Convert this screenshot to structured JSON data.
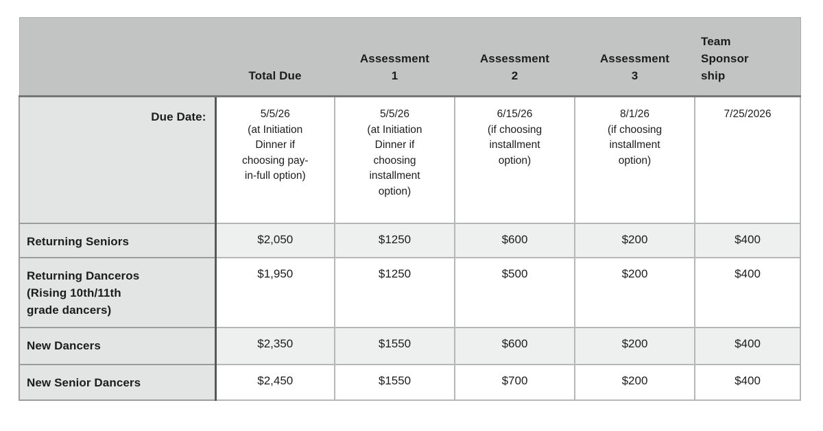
{
  "table": {
    "columns": [
      {
        "label": ""
      },
      {
        "label": "Total Due"
      },
      {
        "label": "Assessment\n1"
      },
      {
        "label": "Assessment\n2"
      },
      {
        "label": "Assessment\n3"
      },
      {
        "label": "Team\nSponsor\nship"
      }
    ],
    "due_date_row": {
      "label": "Due Date:",
      "values": [
        "5/5/26\n(at Initiation\nDinner if\nchoosing pay-\nin-full option)",
        "5/5/26\n(at Initiation\nDinner if\nchoosing\ninstallment\noption)",
        "6/15/26\n(if choosing\ninstallment\noption)",
        "8/1/26\n(if choosing\ninstallment\noption)",
        "7/25/2026"
      ]
    },
    "rows": [
      {
        "label": "Returning Seniors",
        "tinted": true,
        "values": [
          "$2,050",
          "$1250",
          "$600",
          "$200",
          "$400"
        ]
      },
      {
        "label": "Returning Danceros\n(Rising 10th/11th\ngrade dancers)",
        "tinted": false,
        "values": [
          "$1,950",
          "$1250",
          "$500",
          "$200",
          "$400"
        ]
      },
      {
        "label": "New Dancers",
        "tinted": true,
        "values": [
          "$2,350",
          "$1550",
          "$600",
          "$200",
          "$400"
        ]
      },
      {
        "label": "New Senior Dancers",
        "tinted": false,
        "values": [
          "$2,450",
          "$1550",
          "$700",
          "$200",
          "$400"
        ]
      }
    ],
    "colors": {
      "header_bg": "#c2c4c3",
      "label_bg": "#e3e5e4",
      "tint_bg": "#eef0ef",
      "white_bg": "#ffffff",
      "border_light": "#b4b7b6",
      "border_mid": "#9a9d9c",
      "border_dark": "#565958",
      "header_rule": "#737675",
      "text": "#1c1c1c"
    }
  }
}
